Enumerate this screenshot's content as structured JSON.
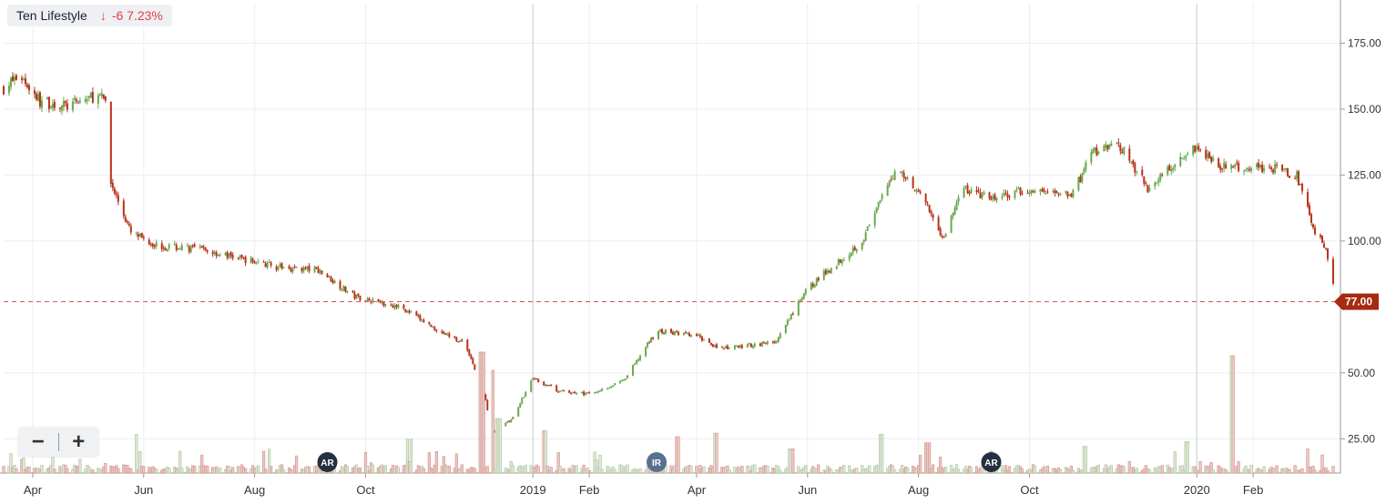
{
  "legend": {
    "name": "Ten Lifestyle",
    "arrow_icon": "arrow-down-icon",
    "change": "-6 7.23%"
  },
  "zoom": {
    "minus_icon": "minus-icon",
    "plus_icon": "plus-icon"
  },
  "events": [
    "AR",
    "IR",
    "AR"
  ],
  "colors": {
    "up": "#6aa84f",
    "down": "#b8321a",
    "price_line": "#e06060",
    "badge": "#a52b12",
    "event": "#253042",
    "event_ir": "#5a7090"
  },
  "chart_data": {
    "type": "candlestick",
    "last_price_label": "77.00",
    "last_price": 77,
    "ylim": [
      12,
      190
    ],
    "y_ticks": [
      25,
      50,
      100,
      125,
      150,
      175
    ],
    "y_tick_labels": [
      "25.00",
      "50.00",
      "100.00",
      "125.00",
      "150.00",
      "175.00"
    ],
    "x_tick_labels": [
      "Apr",
      "Jun",
      "Aug",
      "Oct",
      "2019",
      "Feb",
      "Apr",
      "Jun",
      "Aug",
      "Oct",
      "2020",
      "Feb"
    ],
    "x_range": [
      "2018-03-16",
      "2020-03-20"
    ],
    "x_ticks": [
      "2018-04-01",
      "2018-06-01",
      "2018-08-01",
      "2018-10-01",
      "2019-01-01",
      "2019-02-01",
      "2019-04-01",
      "2019-06-01",
      "2019-08-01",
      "2019-10-01",
      "2020-01-01",
      "2020-02-01"
    ],
    "price_path": [
      [
        "2018-03-16",
        158
      ],
      [
        "2018-03-25",
        163
      ],
      [
        "2018-04-05",
        153
      ],
      [
        "2018-04-20",
        151
      ],
      [
        "2018-05-05",
        155
      ],
      [
        "2018-05-12",
        153
      ],
      [
        "2018-05-14",
        122
      ],
      [
        "2018-05-25",
        103
      ],
      [
        "2018-06-10",
        98
      ],
      [
        "2018-07-01",
        97
      ],
      [
        "2018-07-20",
        94
      ],
      [
        "2018-08-15",
        90
      ],
      [
        "2018-09-05",
        89
      ],
      [
        "2018-09-25",
        79
      ],
      [
        "2018-10-20",
        75
      ],
      [
        "2018-11-10",
        66
      ],
      [
        "2018-11-25",
        61
      ],
      [
        "2018-12-05",
        42
      ],
      [
        "2018-12-10",
        28
      ],
      [
        "2018-12-20",
        32
      ],
      [
        "2019-01-01",
        48
      ],
      [
        "2019-01-15",
        43
      ],
      [
        "2019-02-01",
        42
      ],
      [
        "2019-02-20",
        47
      ],
      [
        "2019-03-10",
        66
      ],
      [
        "2019-04-01",
        64
      ],
      [
        "2019-04-15",
        59
      ],
      [
        "2019-05-15",
        62
      ],
      [
        "2019-06-01",
        82
      ],
      [
        "2019-07-01",
        100
      ],
      [
        "2019-07-20",
        128
      ],
      [
        "2019-08-01",
        119
      ],
      [
        "2019-08-15",
        101
      ],
      [
        "2019-08-25",
        120
      ],
      [
        "2019-09-10",
        116
      ],
      [
        "2019-10-01",
        119
      ],
      [
        "2019-10-25",
        118
      ],
      [
        "2019-11-05",
        134
      ],
      [
        "2019-11-20",
        136
      ],
      [
        "2019-12-05",
        120
      ],
      [
        "2019-12-20",
        130
      ],
      [
        "2020-01-01",
        136
      ],
      [
        "2020-01-15",
        128
      ],
      [
        "2020-02-10",
        128
      ],
      [
        "2020-02-25",
        125
      ],
      [
        "2020-03-05",
        105
      ],
      [
        "2020-03-12",
        97
      ],
      [
        "2020-03-16",
        83
      ]
    ],
    "volume_spikes": [
      [
        "2018-05-27",
        0.32
      ],
      [
        "2018-10-25",
        0.28
      ],
      [
        "2018-12-04",
        1.0
      ],
      [
        "2018-12-09",
        0.85
      ],
      [
        "2018-12-13",
        0.45
      ],
      [
        "2019-01-07",
        0.35
      ],
      [
        "2019-03-22",
        0.3
      ],
      [
        "2019-04-12",
        0.33
      ],
      [
        "2019-05-23",
        0.2
      ],
      [
        "2019-07-12",
        0.32
      ],
      [
        "2019-08-06",
        0.25
      ],
      [
        "2019-11-01",
        0.22
      ],
      [
        "2019-12-27",
        0.26
      ],
      [
        "2020-01-20",
        0.97
      ],
      [
        "2020-03-01",
        0.2
      ]
    ],
    "events": [
      [
        "2018-09-10",
        "AR"
      ],
      [
        "2019-03-10",
        "IR"
      ],
      [
        "2019-09-10",
        "AR"
      ]
    ],
    "grid": true
  }
}
